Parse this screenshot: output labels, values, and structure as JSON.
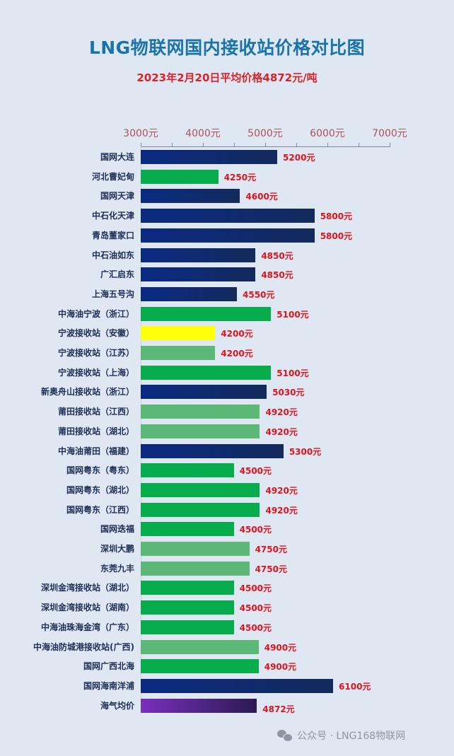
{
  "title": "LNG物联网国内接收站价格对比图",
  "subtitle": "2023年2月20日平均价格4872元/吨",
  "footer": {
    "icon": "wechat-icon",
    "text": "公众号 · LNG168物联网"
  },
  "axis": {
    "ticks": [
      "3000元",
      "4000元",
      "5000元",
      "6000元",
      "7000元"
    ],
    "tick_values": [
      3000,
      4000,
      5000,
      6000,
      7000
    ],
    "min": 3000,
    "max": 7000,
    "minor_step": 500
  },
  "colors": {
    "navy": "#0a2a82",
    "green": "#07ad4d",
    "light_green": "#5cb877",
    "yellow": "#ffff0a",
    "purple": "#7a2fbe",
    "value_label": "#e0141e",
    "title": "#1a74a8",
    "subtitle": "#d9232a",
    "background": "#dfe7f3"
  },
  "rows": [
    {
      "label": "国网大连",
      "value": "5200元",
      "color": "navy"
    },
    {
      "label": "河北曹妃甸",
      "value": "4250元",
      "color": "green"
    },
    {
      "label": "国网天津",
      "value": "4600元",
      "color": "navy"
    },
    {
      "label": "中石化天津",
      "value": "5800元",
      "color": "navy"
    },
    {
      "label": "青岛董家口",
      "value": "5800元",
      "color": "navy"
    },
    {
      "label": "中石油如东",
      "value": "4850元",
      "color": "navy"
    },
    {
      "label": "广汇启东",
      "value": "4850元",
      "color": "navy"
    },
    {
      "label": "上海五号沟",
      "value": "4550元",
      "color": "navy"
    },
    {
      "label": "中海油宁波（浙江）",
      "value": "5100元",
      "color": "green"
    },
    {
      "label": "宁波接收站（安徽）",
      "value": "4200元",
      "color": "yellow"
    },
    {
      "label": "宁波接收站（江苏）",
      "value": "4200元",
      "color": "lgreen"
    },
    {
      "label": "宁波接收站（上海）",
      "value": "5100元",
      "color": "green"
    },
    {
      "label": "新奥舟山接收站（浙江）",
      "value": "5030元",
      "color": "navy"
    },
    {
      "label": "莆田接收站（江西）",
      "value": "4920元",
      "color": "lgreen"
    },
    {
      "label": "莆田接收站（湖北）",
      "value": "4920元",
      "color": "lgreen"
    },
    {
      "label": "中海油莆田（福建）",
      "value": "5300元",
      "color": "navy"
    },
    {
      "label": "国网粤东（粤东）",
      "value": "4500元",
      "color": "green"
    },
    {
      "label": "国网粤东（湖北）",
      "value": "4920元",
      "color": "green"
    },
    {
      "label": "国网粤东（江西）",
      "value": "4920元",
      "color": "green"
    },
    {
      "label": "国网迭福",
      "value": "4500元",
      "color": "green"
    },
    {
      "label": "深圳大鹏",
      "value": "4750元",
      "color": "lgreen"
    },
    {
      "label": "东莞九丰",
      "value": "4750元",
      "color": "lgreen"
    },
    {
      "label": "深圳金湾接收站（湖北）",
      "value": "4500元",
      "color": "green"
    },
    {
      "label": "深圳金湾接收站（湖南）",
      "value": "4500元",
      "color": "green"
    },
    {
      "label": "中海油珠海金湾（广东）",
      "value": "4500元",
      "color": "green"
    },
    {
      "label": "中海油防城港接收站(广西)",
      "value": "4900元",
      "color": "lgreen"
    },
    {
      "label": "国网广西北海",
      "value": "4900元",
      "color": "green"
    },
    {
      "label": "国网海南洋浦",
      "value": "6100元",
      "color": "navy"
    },
    {
      "label": "海气均价",
      "value": "4872元",
      "color": "purple"
    }
  ],
  "chart_data": {
    "type": "bar",
    "orientation": "horizontal",
    "title": "LNG物联网国内接收站价格对比图",
    "subtitle": "2023年2月20日平均价格4872元/吨",
    "xlabel": "",
    "ylabel": "",
    "xlim": [
      3000,
      7000
    ],
    "x_tick_labels": [
      "3000元",
      "4000元",
      "5000元",
      "6000元",
      "7000元"
    ],
    "grid": false,
    "legend": null,
    "unit": "元/吨",
    "categories": [
      "国网大连",
      "河北曹妃甸",
      "国网天津",
      "中石化天津",
      "青岛董家口",
      "中石油如东",
      "广汇启东",
      "上海五号沟",
      "中海油宁波（浙江）",
      "宁波接收站（安徽）",
      "宁波接收站（江苏）",
      "宁波接收站（上海）",
      "新奥舟山接收站（浙江）",
      "莆田接收站（江西）",
      "莆田接收站（湖北）",
      "中海油莆田（福建）",
      "国网粤东（粤东）",
      "国网粤东（湖北）",
      "国网粤东（江西）",
      "国网迭福",
      "深圳大鹏",
      "东莞九丰",
      "深圳金湾接收站（湖北）",
      "深圳金湾接收站（湖南）",
      "中海油珠海金湾（广东）",
      "中海油防城港接收站(广西)",
      "国网广西北海",
      "国网海南洋浦",
      "海气均价"
    ],
    "values": [
      5200,
      4250,
      4600,
      5800,
      5800,
      4850,
      4850,
      4550,
      5100,
      4200,
      4200,
      5100,
      5030,
      4920,
      4920,
      5300,
      4500,
      4920,
      4920,
      4500,
      4750,
      4750,
      4500,
      4500,
      4500,
      4900,
      4900,
      6100,
      4872
    ]
  }
}
